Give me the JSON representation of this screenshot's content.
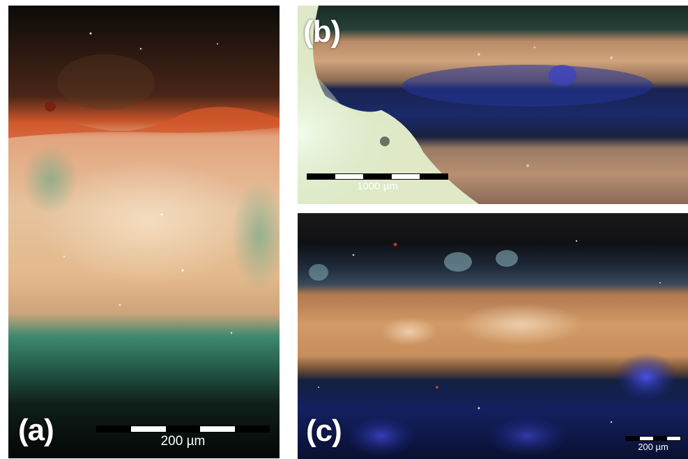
{
  "figure": {
    "panels": [
      {
        "id": "a",
        "label": "(a)",
        "scale_bar_text": "200 µm",
        "scale_bar_segments": 5
      },
      {
        "id": "b",
        "label": "(b)",
        "scale_bar_text": "1000 µm",
        "scale_bar_segments": 5
      },
      {
        "id": "c",
        "label": "(c)",
        "scale_bar_text": "200 µm",
        "scale_bar_segments": 4
      }
    ]
  },
  "colors": {
    "background": "#ffffff",
    "dark_layer": "#1a120d",
    "red_layer": "#b8461f",
    "ground_layer": "#d9a27a",
    "green_layer": "#2f6e5a",
    "blue_layer": "#1b2f8a",
    "label_text": "#ffffff"
  }
}
